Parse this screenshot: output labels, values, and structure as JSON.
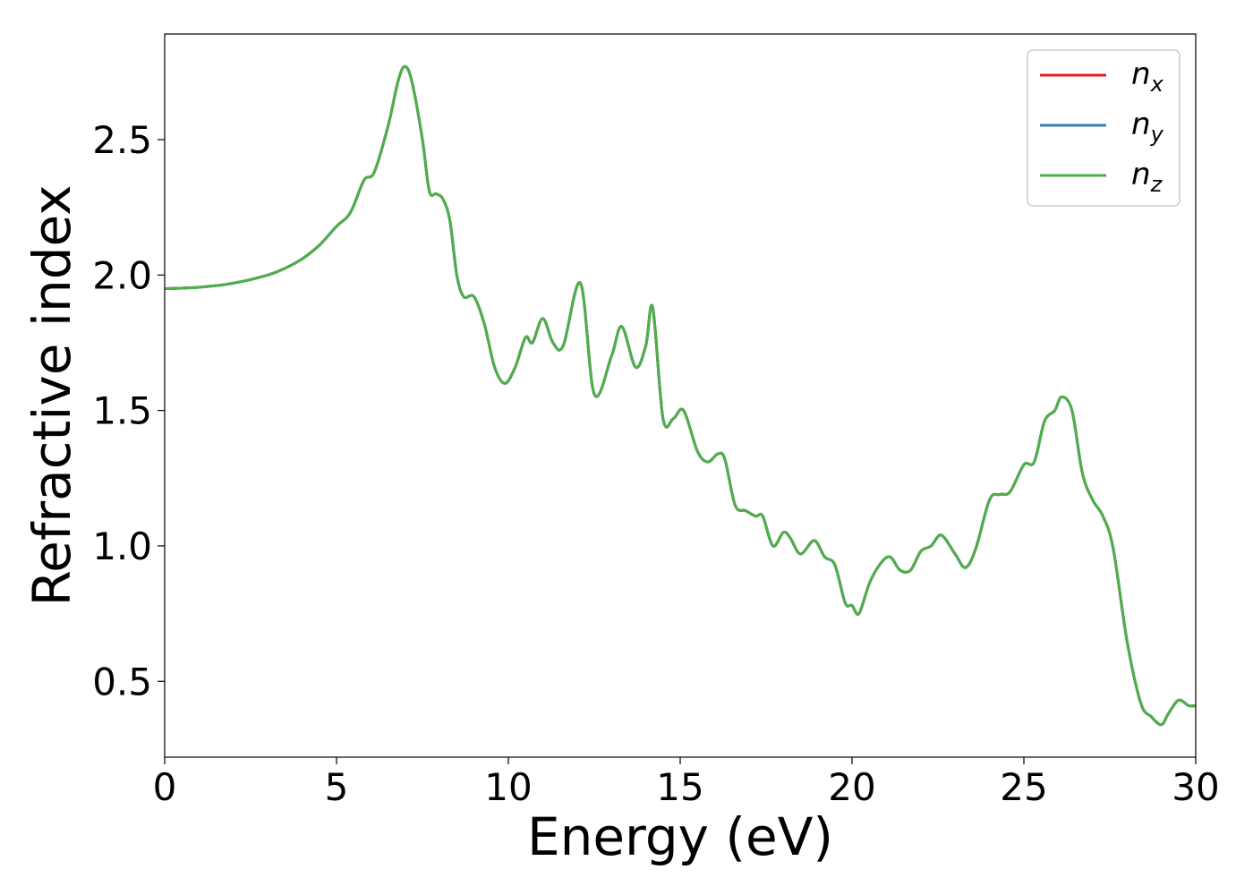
{
  "chart_data": {
    "type": "line",
    "title": "",
    "xlabel": "Energy (eV)",
    "ylabel": "Refractive index",
    "xlim": [
      0,
      30
    ],
    "ylim": [
      0.22,
      2.89
    ],
    "xticks": [
      0,
      5,
      10,
      15,
      20,
      25,
      30
    ],
    "xtick_labels": [
      "0",
      "5",
      "10",
      "15",
      "20",
      "25",
      "30"
    ],
    "yticks": [
      0.5,
      1.0,
      1.5,
      2.0,
      2.5
    ],
    "ytick_labels": [
      "0.5",
      "1.0",
      "1.5",
      "2.0",
      "2.5"
    ],
    "grid": false,
    "legend_position": "top-right",
    "x": [
      0,
      1,
      2,
      3,
      3.5,
      4,
      4.5,
      5,
      5.4,
      5.8,
      6.1,
      6.5,
      6.8,
      7.0,
      7.2,
      7.5,
      7.7,
      7.9,
      8.1,
      8.3,
      8.5,
      8.7,
      9.0,
      9.3,
      9.6,
      9.9,
      10.2,
      10.5,
      10.7,
      11.0,
      11.3,
      11.6,
      12.1,
      12.5,
      13.0,
      13.3,
      13.7,
      14.0,
      14.2,
      14.5,
      14.8,
      15.1,
      15.5,
      15.8,
      16.1,
      16.3,
      16.6,
      16.9,
      17.2,
      17.4,
      17.7,
      18.0,
      18.2,
      18.5,
      18.9,
      19.2,
      19.5,
      19.8,
      20.0,
      20.2,
      20.5,
      20.8,
      21.1,
      21.4,
      21.7,
      22.0,
      22.3,
      22.6,
      23.0,
      23.3,
      23.6,
      24.0,
      24.3,
      24.6,
      25.0,
      25.3,
      25.6,
      25.9,
      26.1,
      26.4,
      26.7,
      27.0,
      27.3,
      27.6,
      28.0,
      28.4,
      28.7,
      29.0,
      29.2,
      29.5,
      29.8,
      30.0
    ],
    "series": [
      {
        "name": "n",
        "subscript": "x",
        "color": "#e41a1c",
        "values": null
      },
      {
        "name": "n",
        "subscript": "y",
        "color": "#377eb8",
        "values": null
      },
      {
        "name": "n",
        "subscript": "z",
        "color": "#4daf4a",
        "values": [
          1.95,
          1.955,
          1.97,
          2.0,
          2.025,
          2.06,
          2.11,
          2.18,
          2.23,
          2.35,
          2.38,
          2.55,
          2.72,
          2.77,
          2.71,
          2.5,
          2.31,
          2.3,
          2.28,
          2.2,
          2.0,
          1.92,
          1.92,
          1.82,
          1.66,
          1.6,
          1.66,
          1.77,
          1.75,
          1.84,
          1.75,
          1.74,
          1.97,
          1.56,
          1.7,
          1.81,
          1.66,
          1.74,
          1.88,
          1.47,
          1.47,
          1.5,
          1.35,
          1.31,
          1.34,
          1.32,
          1.15,
          1.13,
          1.11,
          1.11,
          1.0,
          1.05,
          1.03,
          0.97,
          1.02,
          0.96,
          0.93,
          0.79,
          0.78,
          0.75,
          0.86,
          0.93,
          0.96,
          0.91,
          0.91,
          0.98,
          1.0,
          1.04,
          0.97,
          0.92,
          0.99,
          1.17,
          1.19,
          1.2,
          1.3,
          1.31,
          1.46,
          1.5,
          1.55,
          1.5,
          1.27,
          1.17,
          1.11,
          0.99,
          0.65,
          0.42,
          0.37,
          0.34,
          0.38,
          0.43,
          0.41,
          0.41
        ]
      }
    ]
  }
}
